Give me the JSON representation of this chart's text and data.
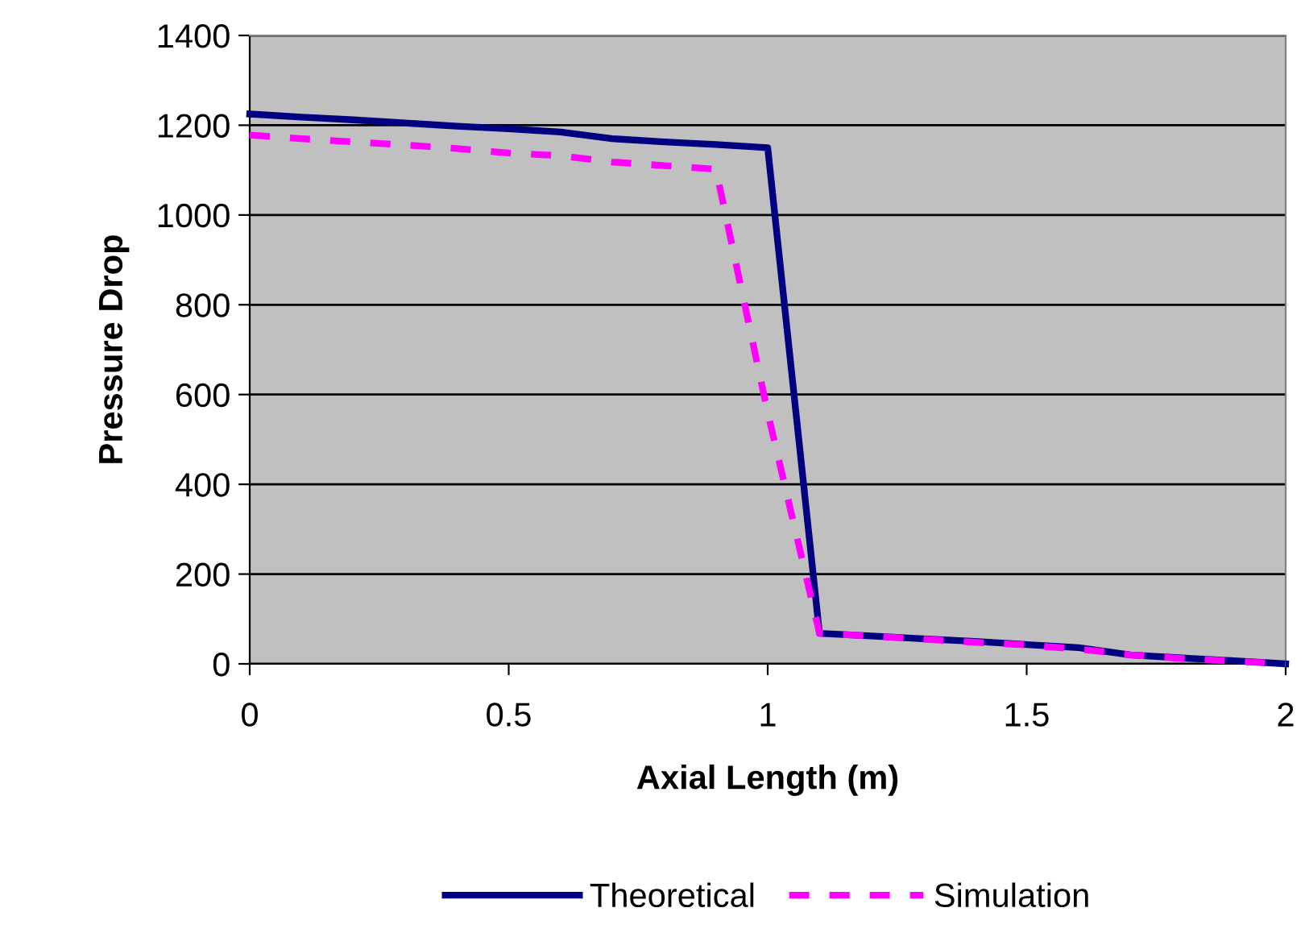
{
  "chart_data": {
    "type": "line",
    "xlabel": "Axial Length (m)",
    "ylabel": "Pressure Drop",
    "x": [
      0,
      0.1,
      0.2,
      0.3,
      0.4,
      0.5,
      0.6,
      0.7,
      0.8,
      0.9,
      1.0,
      1.1,
      1.2,
      1.3,
      1.4,
      1.5,
      1.6,
      1.7,
      1.8,
      1.9,
      2.0
    ],
    "series": [
      {
        "name": "Theoretical",
        "color": "#000080",
        "line_style": "solid",
        "values": [
          1225,
          1218,
          1212,
          1205,
          1198,
          1192,
          1185,
          1170,
          1163,
          1157,
          1150,
          68,
          62,
          56,
          50,
          43,
          36,
          20,
          13,
          7,
          0
        ]
      },
      {
        "name": "Simulation",
        "color": "#ff00ff",
        "line_style": "dashed",
        "values": [
          1178,
          1170,
          1163,
          1156,
          1148,
          1138,
          1132,
          1118,
          1110,
          1102,
          560,
          68,
          62,
          55,
          48,
          42,
          33,
          20,
          12,
          6,
          0
        ]
      }
    ],
    "xlim": [
      0,
      2
    ],
    "xticks": [
      0,
      0.5,
      1,
      1.5,
      2
    ],
    "ylim": [
      0,
      1400
    ],
    "yticks": [
      0,
      200,
      400,
      600,
      800,
      1000,
      1200,
      1400
    ],
    "grid": "y",
    "legend": "bottom"
  }
}
